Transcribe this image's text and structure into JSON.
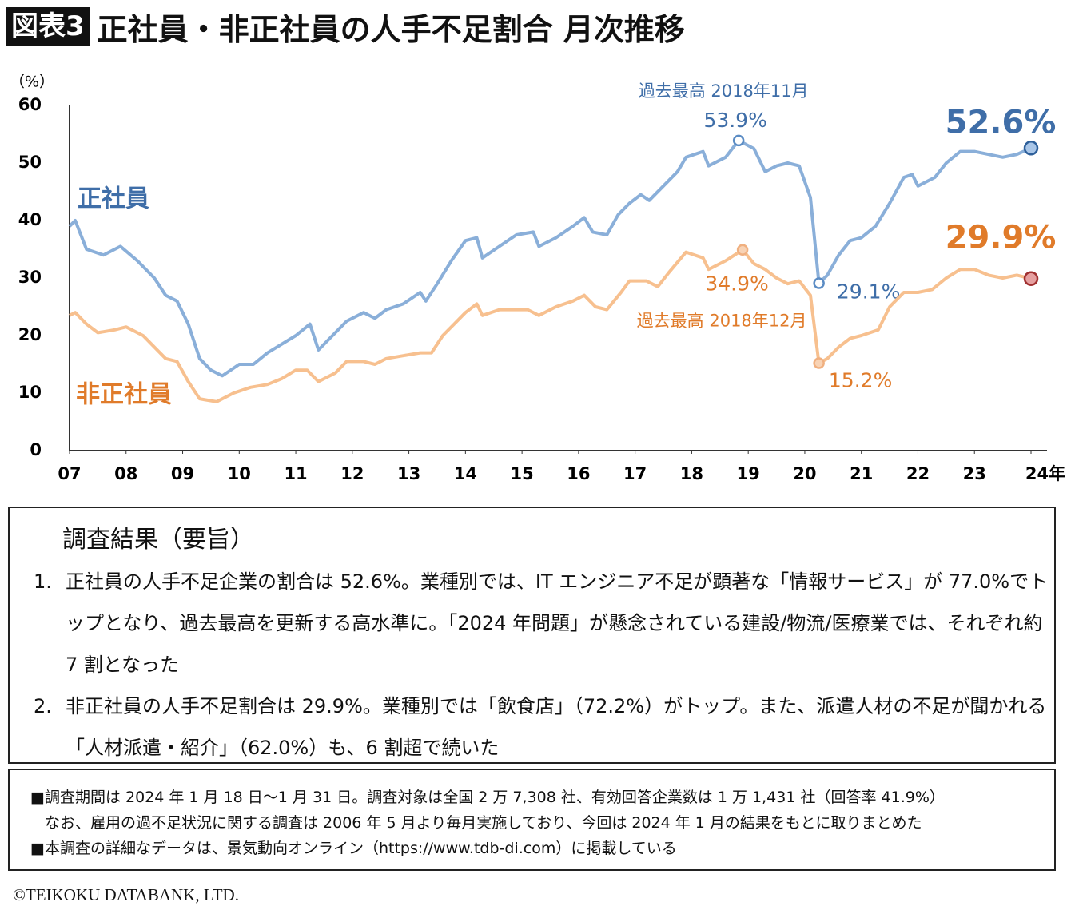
{
  "header": {
    "tag": "図表3",
    "title": "正社員・非正社員の人手不足割合 月次推移"
  },
  "chart_data": {
    "type": "line",
    "y_unit": "（%）",
    "xlim": [
      2007,
      2024
    ],
    "xticks": [
      {
        "value": 2007,
        "label": "07"
      },
      {
        "value": 2008,
        "label": "08"
      },
      {
        "value": 2009,
        "label": "09"
      },
      {
        "value": 2010,
        "label": "10"
      },
      {
        "value": 2011,
        "label": "11"
      },
      {
        "value": 2012,
        "label": "12"
      },
      {
        "value": 2013,
        "label": "13"
      },
      {
        "value": 2014,
        "label": "14"
      },
      {
        "value": 2015,
        "label": "15"
      },
      {
        "value": 2016,
        "label": "16"
      },
      {
        "value": 2017,
        "label": "17"
      },
      {
        "value": 2018,
        "label": "18"
      },
      {
        "value": 2019,
        "label": "19"
      },
      {
        "value": 2020,
        "label": "20"
      },
      {
        "value": 2021,
        "label": "21"
      },
      {
        "value": 2022,
        "label": "22"
      },
      {
        "value": 2023,
        "label": "23"
      },
      {
        "value": 2024,
        "label": "24年"
      }
    ],
    "ylim": [
      0,
      60
    ],
    "yticks": [
      0,
      10,
      20,
      30,
      40,
      50,
      60
    ],
    "grid": false,
    "series": [
      {
        "name": "正社員",
        "color": "#8aafd9",
        "x": [
          2007.0,
          2007.1,
          2007.3,
          2007.6,
          2007.9,
          2008.2,
          2008.5,
          2008.7,
          2008.9,
          2009.1,
          2009.3,
          2009.5,
          2009.7,
          2010.0,
          2010.25,
          2010.5,
          2010.75,
          2011.0,
          2011.25,
          2011.4,
          2011.6,
          2011.9,
          2012.2,
          2012.4,
          2012.6,
          2012.9,
          2013.2,
          2013.3,
          2013.5,
          2013.75,
          2014.0,
          2014.2,
          2014.3,
          2014.6,
          2014.9,
          2015.2,
          2015.3,
          2015.6,
          2015.9,
          2016.1,
          2016.25,
          2016.5,
          2016.7,
          2016.9,
          2017.1,
          2017.25,
          2017.5,
          2017.75,
          2017.9,
          2018.2,
          2018.3,
          2018.6,
          2018.83,
          2019.1,
          2019.3,
          2019.5,
          2019.7,
          2019.9,
          2020.1,
          2020.25,
          2020.4,
          2020.6,
          2020.8,
          2021.0,
          2021.25,
          2021.5,
          2021.75,
          2021.9,
          2022.0,
          2022.3,
          2022.5,
          2022.75,
          2023.0,
          2023.25,
          2023.5,
          2023.75,
          2024.0
        ],
        "values": [
          39,
          40,
          35,
          34,
          35.5,
          33,
          30,
          27,
          26,
          22,
          16,
          14,
          13,
          15,
          15,
          17,
          18.5,
          20,
          22,
          17.5,
          19.5,
          22.5,
          24,
          23,
          24.5,
          25.5,
          27.5,
          26,
          29,
          33,
          36.5,
          37,
          33.5,
          35.5,
          37.5,
          38,
          35.5,
          37,
          39,
          40.5,
          38,
          37.5,
          41,
          43,
          44.5,
          43.5,
          46,
          48.5,
          51,
          52,
          49.5,
          51,
          53.9,
          52.5,
          48.5,
          49.5,
          50,
          49.5,
          44,
          29.1,
          30.5,
          34,
          36.5,
          37,
          39,
          43,
          47.5,
          48,
          46,
          47.5,
          50,
          52,
          52,
          51.5,
          51,
          51.5,
          52.6
        ],
        "highlights": [
          {
            "x": 2018.83,
            "y": 53.9,
            "label": "53.9%",
            "note": "過去最高 2018年11月"
          },
          {
            "x": 2020.25,
            "y": 29.1,
            "label": "29.1%"
          },
          {
            "x": 2024.0,
            "y": 52.6,
            "label": "52.6%"
          }
        ]
      },
      {
        "name": "非正社員",
        "color": "#f7c08f",
        "x": [
          2007.0,
          2007.1,
          2007.3,
          2007.5,
          2007.8,
          2008.0,
          2008.3,
          2008.5,
          2008.7,
          2008.9,
          2009.1,
          2009.3,
          2009.6,
          2009.9,
          2010.2,
          2010.5,
          2010.75,
          2011.0,
          2011.2,
          2011.4,
          2011.7,
          2011.9,
          2012.2,
          2012.4,
          2012.6,
          2012.9,
          2013.2,
          2013.4,
          2013.6,
          2013.8,
          2014.0,
          2014.2,
          2014.3,
          2014.6,
          2014.9,
          2015.1,
          2015.3,
          2015.6,
          2015.9,
          2016.1,
          2016.3,
          2016.5,
          2016.75,
          2016.9,
          2017.2,
          2017.4,
          2017.6,
          2017.9,
          2018.2,
          2018.3,
          2018.6,
          2018.9,
          2019.1,
          2019.3,
          2019.5,
          2019.7,
          2019.9,
          2020.1,
          2020.25,
          2020.4,
          2020.6,
          2020.8,
          2021.0,
          2021.3,
          2021.5,
          2021.75,
          2022.0,
          2022.25,
          2022.5,
          2022.75,
          2023.0,
          2023.25,
          2023.5,
          2023.75,
          2024.0
        ],
        "values": [
          23.5,
          24,
          22,
          20.5,
          21,
          21.5,
          20,
          18,
          16,
          15.5,
          12,
          9,
          8.5,
          10,
          11,
          11.5,
          12.5,
          14,
          14,
          12,
          13.5,
          15.5,
          15.5,
          15,
          16,
          16.5,
          17,
          17,
          20,
          22,
          24,
          25.5,
          23.5,
          24.5,
          24.5,
          24.5,
          23.5,
          25,
          26,
          27,
          25,
          24.5,
          27.5,
          29.5,
          29.5,
          28.5,
          31,
          34.5,
          33.5,
          31.5,
          33,
          34.9,
          32.5,
          31.5,
          30,
          29,
          29.5,
          27,
          15.2,
          16,
          18,
          19.5,
          20,
          21,
          25,
          27.5,
          27.5,
          28,
          30,
          31.5,
          31.5,
          30.5,
          30,
          30.5,
          29.9
        ],
        "highlights": [
          {
            "x": 2018.9,
            "y": 34.9,
            "label": "34.9%",
            "note": "過去最高 2018年12月"
          },
          {
            "x": 2020.25,
            "y": 15.2,
            "label": "15.2%"
          },
          {
            "x": 2024.0,
            "y": 29.9,
            "label": "29.9%"
          }
        ]
      }
    ]
  },
  "summary": {
    "heading": "調査結果（要旨）",
    "items": [
      {
        "number": "1.",
        "text": "正社員の人手不足企業の割合は 52.6%。業種別では、IT エンジニア不足が顕著な「情報サービス」が 77.0%でトップとなり、過去最高を更新する高水準に。「2024 年問題」が懸念されている建設/物流/医療業では、それぞれ約 7 割となった"
      },
      {
        "number": "2.",
        "text": "非正社員の人手不足割合は 29.9%。業種別では「飲食店」（72.2%）がトップ。また、派遣人材の不足が聞かれる「人材派遣・紹介」（62.0%）も、6 割超で続いた"
      }
    ]
  },
  "notes": [
    [
      "■調査期間は 2024 年 1 月 18 日～1 月 31 日。調査対象は全国 2 万 7,308 社、有効回答企業数は 1 万 1,431 社（回答率 41.9%）",
      "なお、雇用の過不足状況に関する調査は 2006 年 5 月より毎月実施しており、今回は 2024 年 1 月の結果をもとに取りまとめた"
    ],
    [
      "■本調査の詳細なデータは、景気動向オンライン（https://www.tdb-di.com）に掲載している"
    ]
  ],
  "copyright": "©TEIKOKU DATABANK, LTD."
}
